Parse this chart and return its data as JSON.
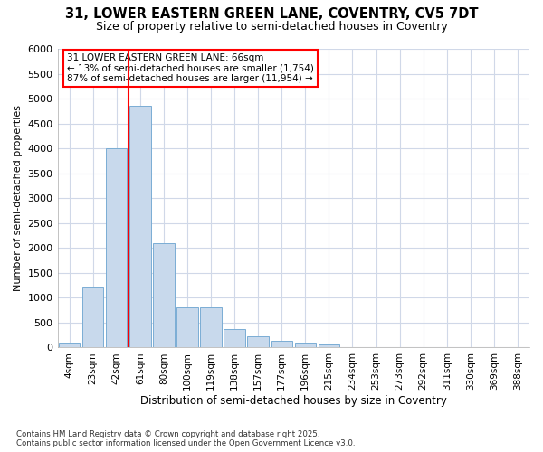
{
  "title": "31, LOWER EASTERN GREEN LANE, COVENTRY, CV5 7DT",
  "subtitle": "Size of property relative to semi-detached houses in Coventry",
  "xlabel": "Distribution of semi-detached houses by size in Coventry",
  "ylabel": "Number of semi-detached properties",
  "categories": [
    "4sqm",
    "23sqm",
    "42sqm",
    "61sqm",
    "80sqm",
    "100sqm",
    "119sqm",
    "138sqm",
    "157sqm",
    "177sqm",
    "196sqm",
    "215sqm",
    "234sqm",
    "253sqm",
    "273sqm",
    "292sqm",
    "311sqm",
    "330sqm",
    "369sqm",
    "388sqm"
  ],
  "values": [
    100,
    1200,
    4000,
    4850,
    2100,
    800,
    800,
    370,
    230,
    130,
    100,
    60,
    0,
    0,
    0,
    0,
    0,
    0,
    0,
    0
  ],
  "bar_color": "#c8d9ec",
  "bar_edge_color": "#7aadd4",
  "property_line_x": 2.5,
  "property_label": "31 LOWER EASTERN GREEN LANE: 66sqm",
  "annotation_smaller": "← 13% of semi-detached houses are smaller (1,754)",
  "annotation_larger": "87% of semi-detached houses are larger (11,954) →",
  "ylim_max": 6000,
  "yticks": [
    0,
    500,
    1000,
    1500,
    2000,
    2500,
    3000,
    3500,
    4000,
    4500,
    5000,
    5500,
    6000
  ],
  "grid_color": "#d0d8e8",
  "bg_color": "#ffffff",
  "footer1": "Contains HM Land Registry data © Crown copyright and database right 2025.",
  "footer2": "Contains public sector information licensed under the Open Government Licence v3.0."
}
